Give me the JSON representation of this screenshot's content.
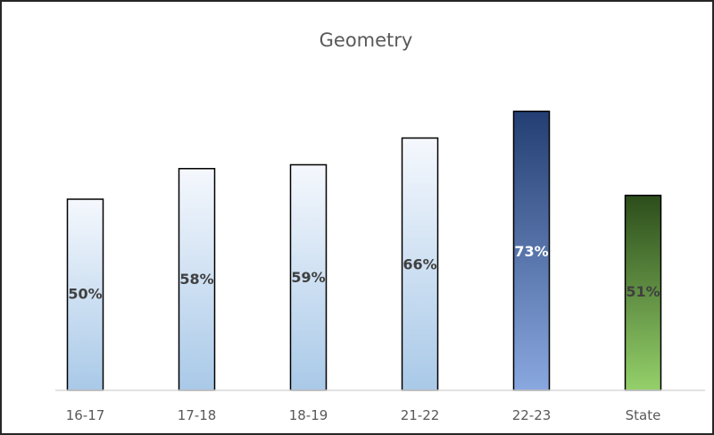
{
  "chart_data": {
    "type": "bar",
    "title": "Geometry",
    "xlabel": "",
    "ylabel": "",
    "ylim": [
      0,
      100
    ],
    "grid": false,
    "legend": "none",
    "categories": [
      "16-17",
      "17-18",
      "18-19",
      "21-22",
      "22-23",
      "State"
    ],
    "values": [
      50,
      58,
      59,
      66,
      73,
      51
    ],
    "data_labels": [
      "50%",
      "58%",
      "59%",
      "66%",
      "73%",
      "51%"
    ],
    "bar_styles": [
      {
        "gradient_top": "#f5f8fd",
        "gradient_bottom": "#a9c9e8",
        "label_color": "#404040"
      },
      {
        "gradient_top": "#f5f8fd",
        "gradient_bottom": "#a9c9e8",
        "label_color": "#404040"
      },
      {
        "gradient_top": "#f5f8fd",
        "gradient_bottom": "#a9c9e8",
        "label_color": "#404040"
      },
      {
        "gradient_top": "#f5f8fd",
        "gradient_bottom": "#a9c9e8",
        "label_color": "#404040"
      },
      {
        "gradient_top": "#233e72",
        "gradient_bottom": "#8aa8e0",
        "label_color": "#ffffff"
      },
      {
        "gradient_top": "#2c4d1b",
        "gradient_bottom": "#94d06a",
        "label_color": "#404040"
      }
    ],
    "bar_outline": "#000000",
    "axis_color": "#d9d9d9"
  }
}
